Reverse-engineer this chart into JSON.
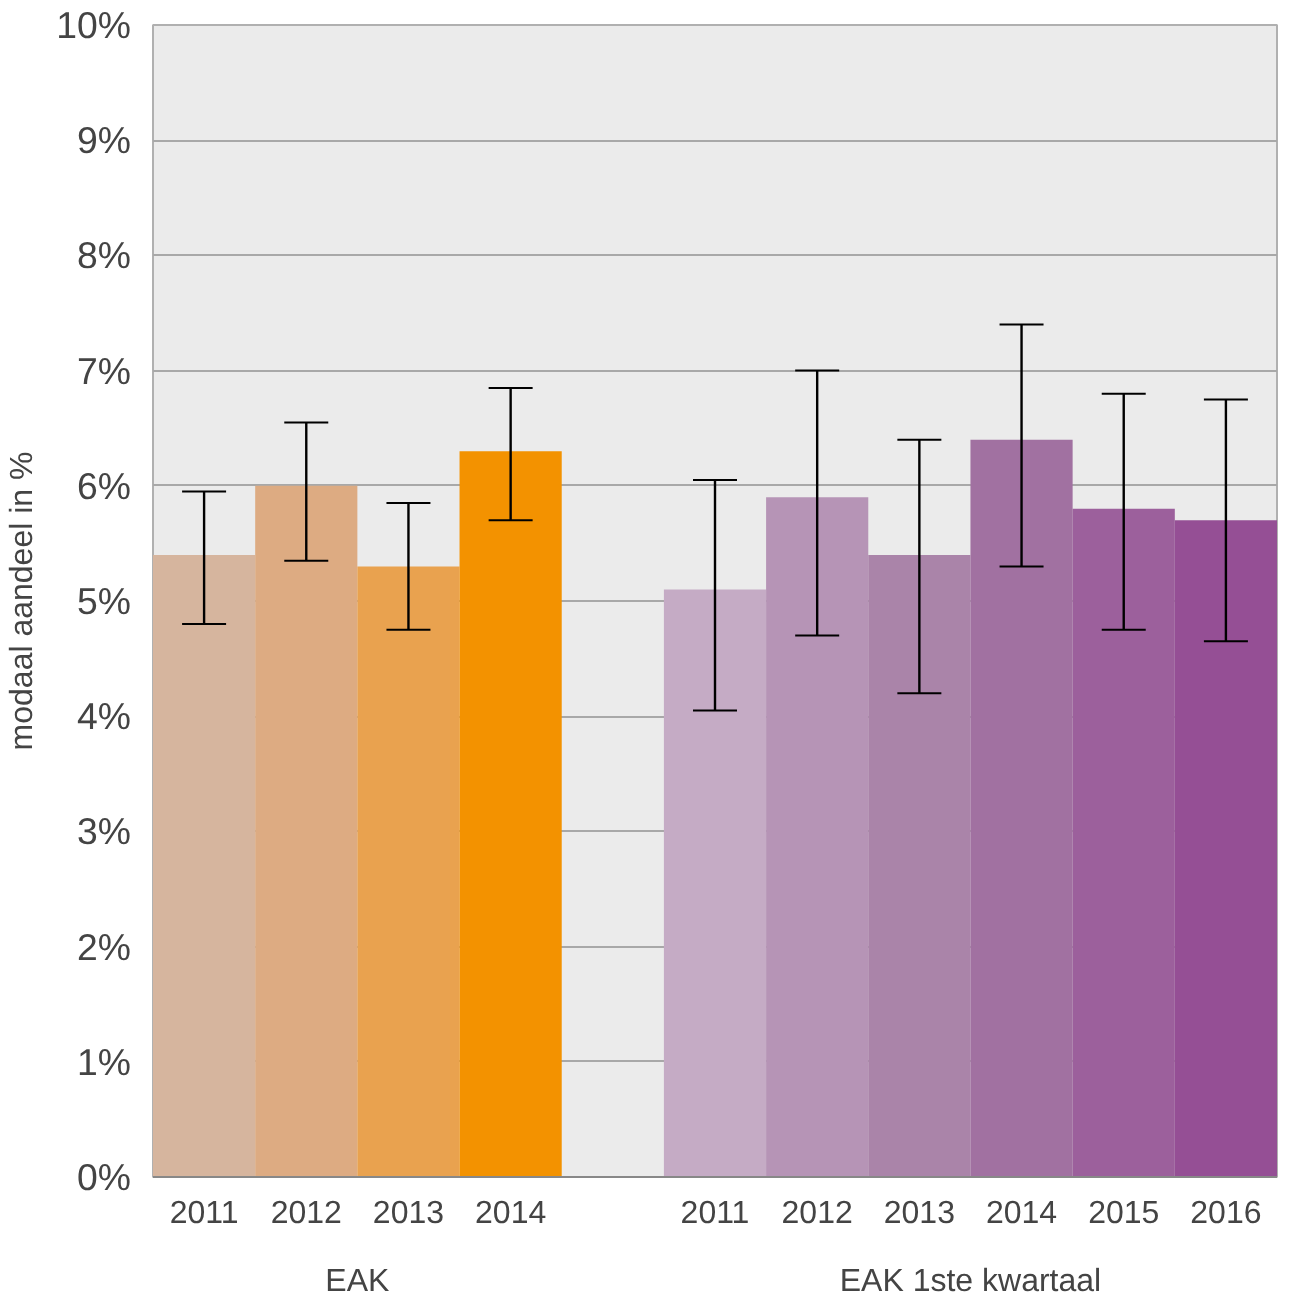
{
  "chart_data": {
    "type": "bar",
    "ylabel": "modaal aandeel in %",
    "categories": [
      "2011",
      "2012",
      "2013",
      "2014",
      null,
      "2011",
      "2012",
      "2013",
      "2014",
      "2015",
      "2016"
    ],
    "values": [
      5.4,
      6.0,
      5.3,
      6.3,
      null,
      5.1,
      5.9,
      5.4,
      6.4,
      5.8,
      5.7
    ],
    "colors": [
      "#d6b59e",
      "#ddab82",
      "#e9a24f",
      "#f39200",
      null,
      "#c5abc5",
      "#b694b6",
      "#aa84a9",
      "#a171a1",
      "#9c609c",
      "#954f95"
    ],
    "errors": [
      [
        4.8,
        5.95
      ],
      [
        5.35,
        6.55
      ],
      [
        4.75,
        5.85
      ],
      [
        5.7,
        6.85
      ],
      null,
      [
        4.05,
        6.05
      ],
      [
        4.7,
        7.0
      ],
      [
        4.2,
        6.4
      ],
      [
        5.3,
        7.4
      ],
      [
        4.75,
        6.8
      ],
      [
        4.65,
        6.75
      ]
    ],
    "annotations": [
      "EAK",
      "EAK 1ste kwartaal"
    ],
    "ylim": [
      0,
      10
    ],
    "yticks": [
      {
        "value": 0,
        "label": "0%"
      },
      {
        "value": 1,
        "label": "1%"
      },
      {
        "value": 2,
        "label": "2%"
      },
      {
        "value": 3,
        "label": "3%"
      },
      {
        "value": 4,
        "label": "4%"
      },
      {
        "value": 5,
        "label": "5%"
      },
      {
        "value": 6,
        "label": "6%"
      },
      {
        "value": 7,
        "label": "7%"
      },
      {
        "value": 8,
        "label": "8%"
      },
      {
        "value": 9,
        "label": "9%"
      },
      {
        "value": 10,
        "label": "10%"
      }
    ],
    "grid": "y"
  }
}
